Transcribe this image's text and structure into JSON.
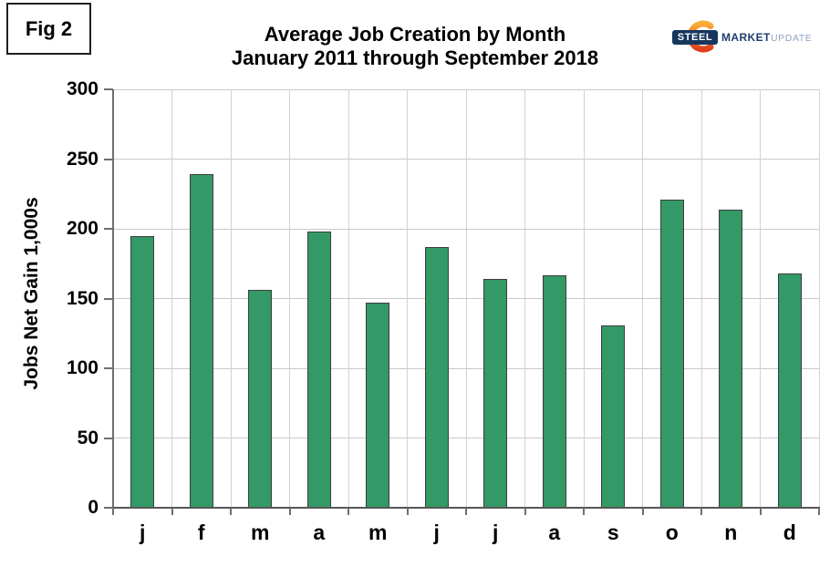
{
  "figure": {
    "label": "Fig 2"
  },
  "header": {
    "title_line1": "Average Job Creation by Month",
    "title_line2": "January 2011 through September 2018"
  },
  "logo": {
    "steel": "STEEL",
    "market": "MARKET",
    "update": "UPDATE"
  },
  "chart_data": {
    "type": "bar",
    "title": "Average Job Creation by Month",
    "subtitle": "January 2011 through September 2018",
    "categories": [
      "j",
      "f",
      "m",
      "a",
      "m",
      "j",
      "j",
      "a",
      "s",
      "o",
      "n",
      "d"
    ],
    "values": [
      195,
      239,
      156,
      198,
      147,
      187,
      164,
      167,
      131,
      221,
      214,
      168
    ],
    "xlabel": "",
    "ylabel": "Jobs Net Gain 1,000s",
    "ylim": [
      0,
      300
    ],
    "yticks": [
      0,
      50,
      100,
      150,
      200,
      250,
      300
    ],
    "grid": true,
    "legend": false,
    "bar_color": "#339966",
    "bar_border_color": "#3d3d3d",
    "h_gridline_color": "#c9c9c9",
    "v_gridline_color": "#d2d2d2",
    "axis_color": "#6f6f6f",
    "x_axis_color": "#565656"
  }
}
